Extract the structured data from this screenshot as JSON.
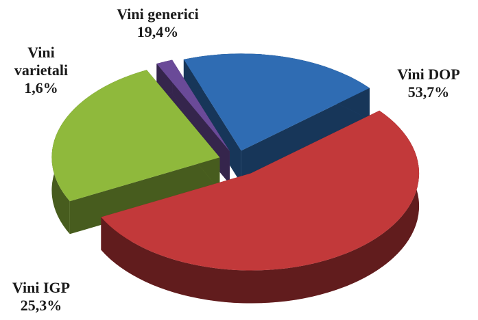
{
  "chart_data": {
    "type": "pie",
    "categories": [
      "Vini generici",
      "Vini DOP",
      "Vini IGP",
      "Vini varietali"
    ],
    "values": [
      19.4,
      53.7,
      25.3,
      1.6
    ],
    "value_labels": [
      "19,4%",
      "53,7%",
      "25,3%",
      "1,6%"
    ],
    "colors": [
      "#2f6cb3",
      "#c2393a",
      "#8fb93c",
      "#6a4a98"
    ]
  }
}
